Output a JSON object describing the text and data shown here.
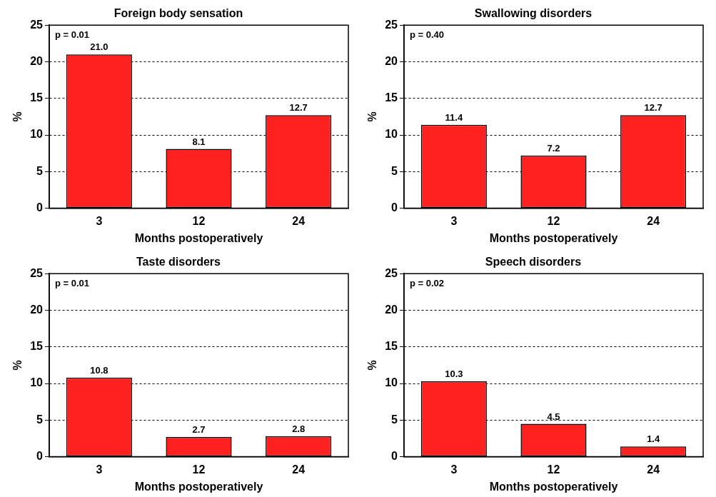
{
  "chart_data": [
    {
      "type": "bar",
      "title": "Foreign body sensation",
      "xlabel": "Months postoperatively",
      "ylabel": "%",
      "categories": [
        "3",
        "12",
        "24"
      ],
      "values": [
        21.0,
        8.1,
        12.7
      ],
      "value_labels": [
        "21.0",
        "8.1",
        "12.7"
      ],
      "color": "#ff2020",
      "ylim": [
        0,
        25
      ],
      "yticks": [
        0,
        5,
        10,
        15,
        20,
        25
      ],
      "grid": "y",
      "annotations": [
        "p = 0.01"
      ]
    },
    {
      "type": "bar",
      "title": "Swallowing disorders",
      "xlabel": "Months postoperatively",
      "ylabel": "%",
      "categories": [
        "3",
        "12",
        "24"
      ],
      "values": [
        11.4,
        7.2,
        12.7
      ],
      "value_labels": [
        "11.4",
        "7.2",
        "12.7"
      ],
      "color": "#ff2020",
      "ylim": [
        0,
        25
      ],
      "yticks": [
        0,
        5,
        10,
        15,
        20,
        25
      ],
      "grid": "y",
      "annotations": [
        "p = 0.40"
      ]
    },
    {
      "type": "bar",
      "title": "Taste disorders",
      "xlabel": "Months postoperatively",
      "ylabel": "%",
      "categories": [
        "3",
        "12",
        "24"
      ],
      "values": [
        10.8,
        2.7,
        2.8
      ],
      "value_labels": [
        "10.8",
        "2.7",
        "2.8"
      ],
      "color": "#ff2020",
      "ylim": [
        0,
        25
      ],
      "yticks": [
        0,
        5,
        10,
        15,
        20,
        25
      ],
      "grid": "y",
      "annotations": [
        "p = 0.01"
      ]
    },
    {
      "type": "bar",
      "title": "Speech disorders",
      "xlabel": "Months postoperatively",
      "ylabel": "%",
      "categories": [
        "3",
        "12",
        "24"
      ],
      "values": [
        10.3,
        4.5,
        1.4
      ],
      "value_labels": [
        "10.3",
        "4.5",
        "1.4"
      ],
      "color": "#ff2020",
      "ylim": [
        0,
        25
      ],
      "yticks": [
        0,
        5,
        10,
        15,
        20,
        25
      ],
      "grid": "y",
      "annotations": [
        "p = 0.02"
      ]
    }
  ]
}
